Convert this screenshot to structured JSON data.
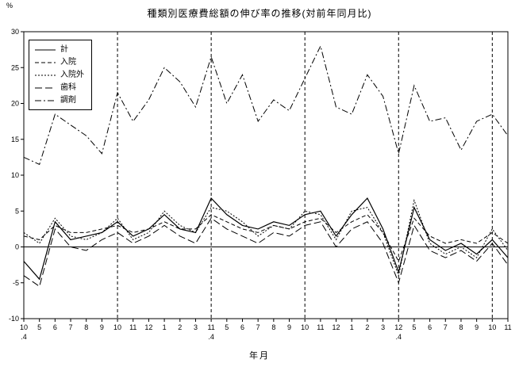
{
  "chart_data": {
    "type": "line",
    "title": "種類別医療費総額の伸び率の推移(対前年同月比)",
    "ylabel": "%",
    "xlabel": "年月",
    "ylim": [
      -10,
      30
    ],
    "y_ticks": [
      -10,
      -5,
      0,
      5,
      10,
      15,
      20,
      25,
      30
    ],
    "categories": [
      "10.4",
      "5",
      "6",
      "7",
      "8",
      "9",
      "10",
      "11",
      "12",
      "1",
      "2",
      "3",
      "11.4",
      "5",
      "6",
      "7",
      "8",
      "9",
      "10",
      "11",
      "12",
      "1",
      "2",
      "3",
      "12.4",
      "5",
      "6",
      "7",
      "8",
      "9",
      "10",
      "11"
    ],
    "vertical_gridline_indices": [
      6,
      12,
      18,
      24,
      30
    ],
    "zero_line": true,
    "grid": "vertical-dashed-only",
    "legend_position": "top-left",
    "line_color": "#000000",
    "series": [
      {
        "name": "計",
        "dash": "solid",
        "values": [
          -2.0,
          -4.5,
          3.5,
          1.0,
          1.5,
          2.0,
          3.5,
          1.5,
          2.5,
          4.5,
          2.5,
          2.0,
          6.8,
          4.5,
          3.0,
          2.5,
          3.5,
          3.0,
          4.5,
          5.0,
          1.5,
          4.5,
          6.8,
          2.5,
          -3.5,
          5.5,
          1.0,
          -0.5,
          0.5,
          -1.0,
          1.0,
          -1.5
        ]
      },
      {
        "name": "入院",
        "dash": "dashed",
        "values": [
          1.5,
          1.0,
          3.0,
          2.0,
          2.0,
          2.5,
          3.0,
          2.0,
          2.5,
          3.5,
          2.5,
          2.5,
          4.5,
          3.5,
          2.5,
          2.0,
          3.0,
          2.5,
          3.5,
          4.0,
          2.0,
          3.5,
          4.5,
          2.0,
          -2.0,
          4.0,
          1.5,
          0.5,
          1.0,
          0.5,
          2.0,
          0.5
        ]
      },
      {
        "name": "入院外",
        "dash": "short-dash",
        "values": [
          2.0,
          0.5,
          4.0,
          1.5,
          1.0,
          2.0,
          4.0,
          1.0,
          2.0,
          5.0,
          3.0,
          2.0,
          5.5,
          5.0,
          3.5,
          1.5,
          3.0,
          2.5,
          5.0,
          4.5,
          1.0,
          5.0,
          5.5,
          2.0,
          -4.0,
          6.5,
          0.5,
          -1.0,
          0.0,
          -1.5,
          2.5,
          -0.5
        ]
      },
      {
        "name": "歯科",
        "dash": "long-dash",
        "values": [
          -4.0,
          -5.5,
          2.5,
          0.0,
          -0.5,
          1.0,
          2.0,
          0.5,
          1.5,
          3.0,
          1.5,
          0.5,
          4.0,
          2.5,
          1.5,
          0.5,
          2.0,
          1.5,
          3.0,
          3.5,
          0.0,
          2.5,
          3.5,
          0.5,
          -5.0,
          3.0,
          -0.5,
          -1.5,
          -0.5,
          -2.0,
          0.5,
          -2.5
        ]
      },
      {
        "name": "調剤",
        "dash": "dash-dot",
        "values": [
          12.5,
          11.5,
          18.5,
          17.0,
          15.5,
          13.0,
          21.5,
          17.5,
          20.5,
          25.0,
          23.0,
          19.5,
          26.5,
          20.0,
          24.0,
          17.5,
          20.5,
          19.0,
          23.5,
          28.0,
          19.5,
          18.5,
          24.0,
          21.0,
          13.0,
          22.5,
          17.5,
          18.0,
          13.5,
          17.5,
          18.5,
          15.5
        ]
      }
    ]
  }
}
